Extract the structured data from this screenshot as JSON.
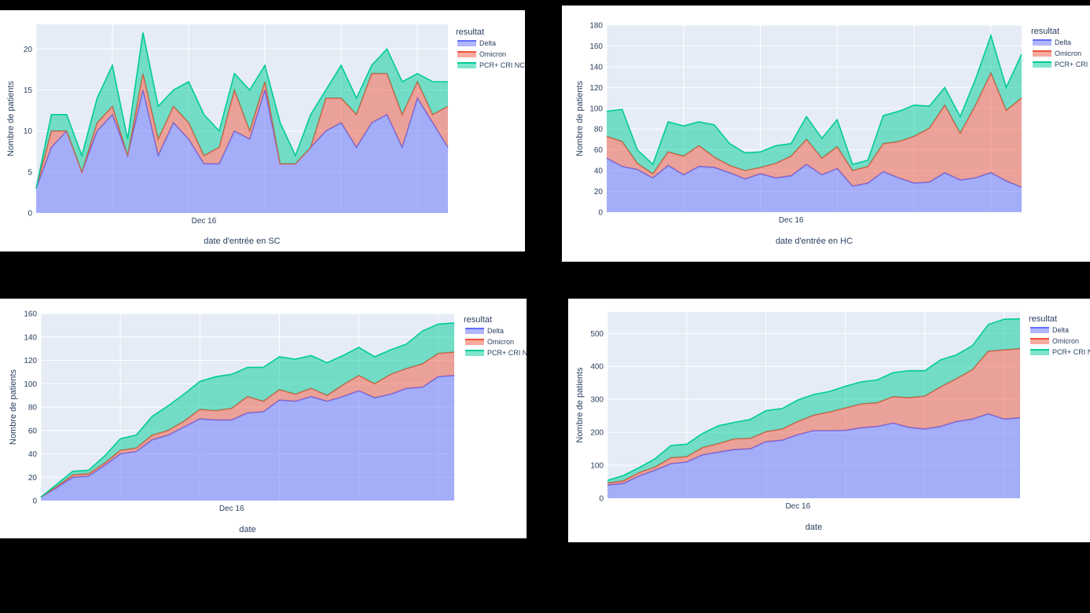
{
  "colors": {
    "delta": "#636efa",
    "omicron": "#ef553b",
    "pcr": "#00cc96",
    "plot_bg": "#e5ecf6",
    "grid": "#ffffff",
    "text": "#2a3f5f"
  },
  "chart_data": [
    {
      "type": "area",
      "xlabel": "date d'entrée en SC",
      "ylabel": "Nombre de patients",
      "xtick_label": "Dec 16",
      "xtick_index": 11,
      "ylim": [
        0,
        23
      ],
      "yticks": [
        0,
        5,
        10,
        15,
        20
      ],
      "legend_title": "resultat",
      "legend_position": "top-right",
      "grid": true,
      "series": [
        {
          "name": "Delta",
          "values": [
            3,
            8,
            10,
            5,
            10,
            12,
            7,
            15,
            7,
            11,
            9,
            6,
            6,
            10,
            9,
            15,
            6,
            6,
            8,
            10,
            11,
            8,
            11,
            12,
            8,
            14,
            11,
            8
          ]
        },
        {
          "name": "Omicron",
          "values": [
            0,
            2,
            0,
            0,
            1,
            1,
            0,
            2,
            2,
            2,
            2,
            1,
            2,
            5,
            1,
            1,
            0,
            0,
            0,
            4,
            3,
            4,
            6,
            5,
            4,
            2,
            1,
            5
          ]
        },
        {
          "name": "PCR+ CRI NC",
          "values": [
            0,
            2,
            2,
            2,
            3,
            5,
            2,
            5,
            4,
            2,
            5,
            5,
            2,
            2,
            5,
            2,
            5,
            1,
            4,
            1,
            4,
            2,
            1,
            3,
            4,
            1,
            4,
            3
          ]
        }
      ]
    },
    {
      "type": "area",
      "xlabel": "date d'entrée en HC",
      "ylabel": "Nombre de patients",
      "xtick_label": "Dec 16",
      "xtick_index": 12,
      "ylim": [
        0,
        180
      ],
      "yticks": [
        0,
        20,
        40,
        60,
        80,
        100,
        120,
        140,
        160,
        180
      ],
      "legend_title": "resultat",
      "legend_position": "top-right",
      "grid": true,
      "series": [
        {
          "name": "Delta",
          "values": [
            52,
            44,
            41,
            33,
            45,
            36,
            44,
            43,
            38,
            32,
            37,
            33,
            35,
            46,
            36,
            42,
            25,
            28,
            39,
            33,
            28,
            29,
            38,
            31,
            33,
            38,
            30,
            24
          ]
        },
        {
          "name": "Omicron",
          "values": [
            21,
            24,
            6,
            4,
            13,
            18,
            20,
            10,
            7,
            8,
            6,
            14,
            19,
            24,
            16,
            21,
            15,
            16,
            27,
            35,
            45,
            52,
            65,
            45,
            70,
            96,
            68,
            86
          ]
        },
        {
          "name": "PCR+ CRI NC",
          "values": [
            24,
            31,
            13,
            9,
            29,
            29,
            23,
            31,
            21,
            17,
            15,
            17,
            12,
            22,
            19,
            26,
            6,
            6,
            27,
            29,
            30,
            21,
            17,
            16,
            25,
            36,
            22,
            42
          ]
        }
      ]
    },
    {
      "type": "area",
      "xlabel": "date",
      "ylabel": "Nombre de patients",
      "xtick_label": "Dec 16",
      "xtick_index": 12,
      "ylim": [
        0,
        160
      ],
      "yticks": [
        0,
        20,
        40,
        60,
        80,
        100,
        120,
        140,
        160
      ],
      "legend_title": "resultat",
      "legend_position": "top-right",
      "grid": true,
      "series": [
        {
          "name": "Delta",
          "values": [
            3,
            11,
            20,
            21,
            30,
            40,
            42,
            52,
            56,
            63,
            70,
            69,
            69,
            75,
            76,
            86,
            85,
            89,
            85,
            89,
            94,
            88,
            91,
            96,
            97,
            106,
            107
          ]
        },
        {
          "name": "Omicron",
          "values": [
            0,
            1,
            2,
            2,
            2,
            3,
            3,
            4,
            4,
            5,
            8,
            8,
            10,
            14,
            9,
            9,
            6,
            7,
            5,
            10,
            13,
            12,
            17,
            17,
            20,
            20,
            20
          ]
        },
        {
          "name": "PCR+ CRI NC",
          "values": [
            0,
            2,
            3,
            3,
            6,
            10,
            11,
            16,
            21,
            23,
            24,
            29,
            29,
            25,
            29,
            28,
            30,
            28,
            28,
            25,
            24,
            23,
            21,
            21,
            28,
            25,
            25
          ]
        }
      ]
    },
    {
      "type": "area",
      "xlabel": "date",
      "ylabel": "Nombre de patients",
      "xtick_label": "Dec 16",
      "xtick_index": 12,
      "ylim": [
        0,
        565
      ],
      "yticks": [
        0,
        100,
        200,
        300,
        400,
        500
      ],
      "legend_title": "resultat",
      "legend_position": "top-right",
      "grid": true,
      "series": [
        {
          "name": "Delta",
          "values": [
            40,
            45,
            68,
            85,
            105,
            110,
            132,
            140,
            148,
            150,
            172,
            176,
            193,
            205,
            205,
            206,
            214,
            218,
            228,
            215,
            210,
            218,
            233,
            240,
            256,
            240,
            244
          ]
        },
        {
          "name": "Omicron",
          "values": [
            6,
            8,
            10,
            10,
            18,
            16,
            22,
            26,
            32,
            32,
            30,
            34,
            40,
            47,
            57,
            68,
            72,
            72,
            80,
            90,
            100,
            120,
            130,
            150,
            190,
            210,
            210
          ]
        },
        {
          "name": "PCR+ CRI NC",
          "values": [
            8,
            16,
            15,
            25,
            37,
            38,
            43,
            54,
            50,
            57,
            64,
            62,
            65,
            63,
            62,
            66,
            67,
            69,
            73,
            82,
            77,
            82,
            72,
            73,
            81,
            93,
            90
          ]
        }
      ]
    }
  ]
}
